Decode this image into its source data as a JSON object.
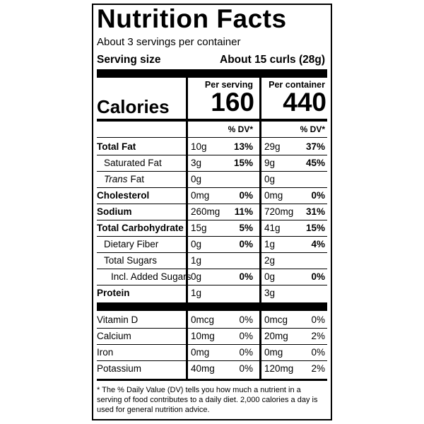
{
  "header": {
    "title": "Nutrition Facts",
    "servings": "About 3 servings per container",
    "serving_size_label": "Serving size",
    "serving_size_value": "About 15 curls (28g)"
  },
  "columns": {
    "per_serving": "Per serving",
    "per_container": "Per container"
  },
  "calories": {
    "label": "Calories",
    "per_serving": 160,
    "per_container": 440
  },
  "dv_headers": [
    "% DV*",
    "% DV*"
  ],
  "nutrients": [
    {
      "label": "Total Fat",
      "serving_amount": "10g",
      "serving_dv": "13%",
      "container_amount": "29g",
      "container_dv": "37%"
    },
    {
      "label": "Saturated Fat",
      "serving_amount": "3g",
      "serving_dv": "15%",
      "container_amount": "9g",
      "container_dv": "45%"
    },
    {
      "label_italic": "Trans",
      "label": "Fat",
      "serving_amount": "0g",
      "container_amount": "0g"
    },
    {
      "label": "Cholesterol",
      "serving_amount": "0mg",
      "serving_dv": "0%",
      "container_amount": "0mg",
      "container_dv": "0%"
    },
    {
      "label": "Sodium",
      "serving_amount": "260mg",
      "serving_dv": "11%",
      "container_amount": "720mg",
      "container_dv": "31%"
    },
    {
      "label": "Total Carbohydrate",
      "serving_amount": "15g",
      "serving_dv": "5%",
      "container_amount": "41g",
      "container_dv": "15%"
    },
    {
      "label": "Dietary Fiber",
      "serving_amount": "0g",
      "serving_dv": "0%",
      "container_amount": "1g",
      "container_dv": "4%"
    },
    {
      "label": "Total Sugars",
      "serving_amount": "1g",
      "container_amount": "2g"
    },
    {
      "label": "Incl. Added Sugars",
      "serving_amount": "0g",
      "serving_dv": "0%",
      "container_amount": "0g",
      "container_dv": "0%"
    },
    {
      "label": "Protein",
      "serving_amount": "1g",
      "container_amount": "3g"
    }
  ],
  "vitamins": [
    {
      "label": "Vitamin D",
      "serving_amount": "0mcg",
      "serving_dv": "0%",
      "container_amount": "0mcg",
      "container_dv": "0%"
    },
    {
      "label": "Calcium",
      "serving_amount": "10mg",
      "serving_dv": "0%",
      "container_amount": "20mg",
      "container_dv": "2%"
    },
    {
      "label": "Iron",
      "serving_amount": "0mg",
      "serving_dv": "0%",
      "container_amount": "0mg",
      "container_dv": "0%"
    },
    {
      "label": "Potassium",
      "serving_amount": "40mg",
      "serving_dv": "0%",
      "container_amount": "120mg",
      "container_dv": "2%"
    }
  ],
  "footnote": "* The % Daily Value (DV) tells you how much a nutrient in a serving of food contributes to a daily diet. 2,000 calories a day is used for general nutrition advice."
}
